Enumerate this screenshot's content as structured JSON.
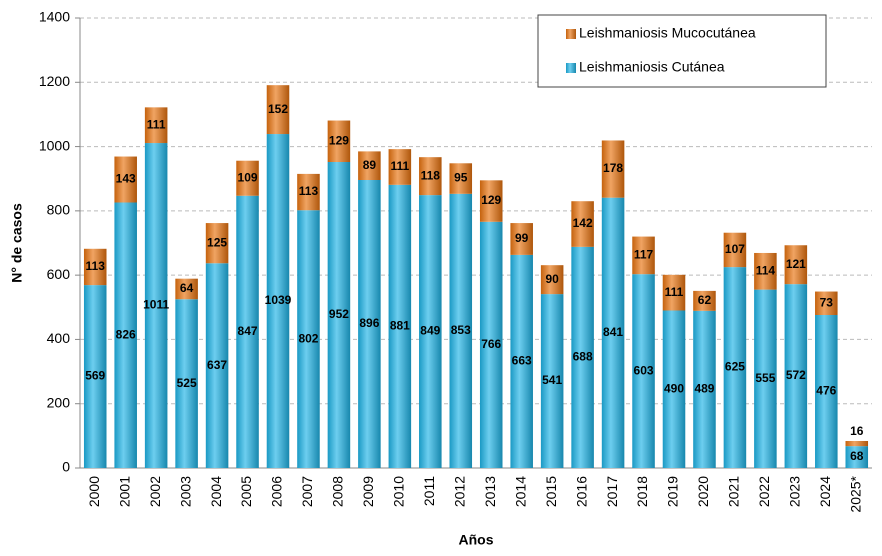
{
  "chart_data": {
    "type": "stacked_bar",
    "x_label": "Años",
    "y_label": "N° de casos",
    "categories": [
      "2000",
      "2001",
      "2002",
      "2003",
      "2004",
      "2005",
      "2006",
      "2007",
      "2008",
      "2009",
      "2010",
      "2011",
      "2012",
      "2013",
      "2014",
      "2015",
      "2016",
      "2017",
      "2018",
      "2019",
      "2020",
      "2021",
      "2022",
      "2023",
      "2024",
      "2025*"
    ],
    "series": [
      {
        "name": "Leishmaniosis Cutánea",
        "color": "#1fb4e6",
        "values": [
          569,
          826,
          1011,
          525,
          637,
          847,
          1039,
          802,
          952,
          896,
          881,
          849,
          853,
          766,
          663,
          541,
          688,
          841,
          603,
          490,
          489,
          625,
          555,
          572,
          476,
          68
        ]
      },
      {
        "name": "Leishmaniosis Mucocutánea",
        "color": "#e8730f",
        "values": [
          113,
          143,
          111,
          64,
          125,
          109,
          152,
          113,
          129,
          89,
          111,
          118,
          95,
          129,
          99,
          90,
          142,
          178,
          117,
          111,
          62,
          107,
          114,
          121,
          73,
          16
        ]
      }
    ],
    "ylim": [
      0,
      1400
    ],
    "yticks": [
      0,
      200,
      400,
      600,
      800,
      1000,
      1200,
      1400
    ],
    "grid": true,
    "legend": "top-right"
  }
}
